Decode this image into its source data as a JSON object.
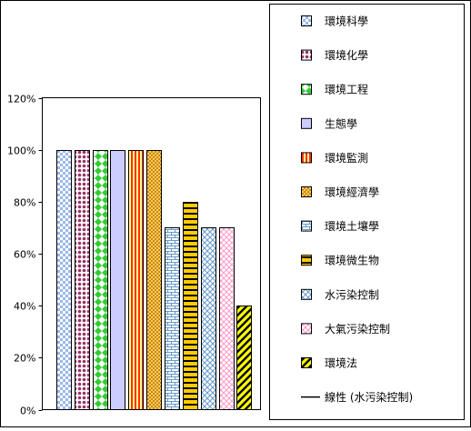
{
  "chart_data": {
    "type": "bar",
    "ylim": [
      0,
      1.2
    ],
    "yticks": [
      "0%",
      "20%",
      "40%",
      "60%",
      "80%",
      "100%",
      "120%"
    ],
    "grid": false,
    "legend_position": "right",
    "series": [
      {
        "name": "環境科學",
        "value": 1.0,
        "pattern": "checker-blue"
      },
      {
        "name": "環境化學",
        "value": 1.0,
        "pattern": "dots-maroon"
      },
      {
        "name": "環境工程",
        "value": 1.0,
        "pattern": "diamond-green"
      },
      {
        "name": "生態學",
        "value": 1.0,
        "pattern": "solid-lavender"
      },
      {
        "name": "環境監測",
        "value": 1.0,
        "pattern": "vstripe-red"
      },
      {
        "name": "環境經濟學",
        "value": 1.0,
        "pattern": "weave-orange"
      },
      {
        "name": "環境土壤學",
        "value": 0.7,
        "pattern": "brick-blue"
      },
      {
        "name": "環境微生物",
        "value": 0.8,
        "pattern": "hstripe-yellow"
      },
      {
        "name": "水污染控制",
        "value": 0.7,
        "pattern": "crosshatch-blue"
      },
      {
        "name": "大氣污染控制",
        "value": 0.7,
        "pattern": "cross-pink"
      },
      {
        "name": "環境法",
        "value": 0.4,
        "pattern": "diag-yellow"
      }
    ],
    "trendline": {
      "name": "線性 (水污染控制)",
      "color": "#000000"
    }
  }
}
